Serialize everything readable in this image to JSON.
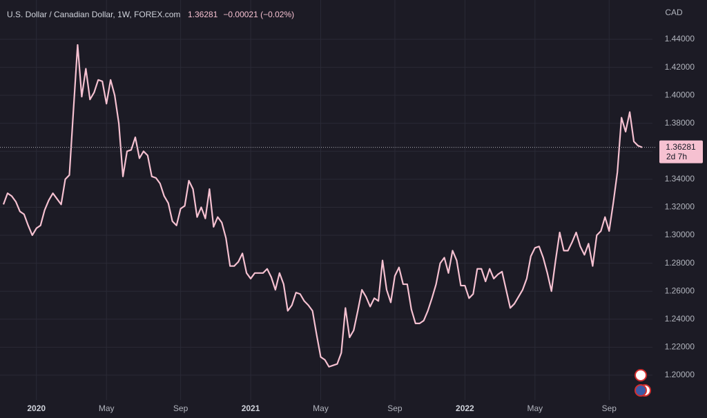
{
  "chart_data": {
    "type": "line",
    "title": "U.S. Dollar / Canadian Dollar, 1W, FOREX.com",
    "change": "−0.00021 (−0.02%)",
    "y_axis_label": "CAD",
    "last_price": 1.36281,
    "countdown": "2d 7h",
    "categories": [
      null,
      null,
      null,
      null,
      null,
      null,
      null,
      null,
      "2020",
      null,
      null,
      null,
      null,
      null,
      null,
      null,
      null,
      null,
      null,
      null,
      null,
      null,
      null,
      null,
      null,
      "May",
      null,
      null,
      null,
      null,
      null,
      null,
      null,
      null,
      null,
      null,
      null,
      null,
      null,
      null,
      null,
      null,
      null,
      "Sep",
      null,
      null,
      null,
      null,
      null,
      null,
      null,
      null,
      null,
      null,
      null,
      null,
      null,
      null,
      null,
      null,
      "2021",
      null,
      null,
      null,
      null,
      null,
      null,
      null,
      null,
      null,
      null,
      null,
      null,
      null,
      null,
      null,
      null,
      "May",
      null,
      null,
      null,
      null,
      null,
      null,
      null,
      null,
      null,
      null,
      null,
      null,
      null,
      null,
      null,
      null,
      null,
      "Sep",
      null,
      null,
      null,
      null,
      null,
      null,
      null,
      null,
      null,
      null,
      null,
      null,
      null,
      null,
      null,
      null,
      "2022",
      null,
      null,
      null,
      null,
      null,
      null,
      null,
      null,
      null,
      null,
      null,
      null,
      null,
      null,
      null,
      null,
      "May",
      null,
      null,
      null,
      null,
      null,
      null,
      null,
      null,
      null,
      null,
      null,
      null,
      null,
      null,
      null,
      null,
      null,
      "Sep",
      null,
      null,
      null,
      null,
      null,
      null,
      null,
      null
    ],
    "series": [
      {
        "name": "USD/CAD",
        "color": "#f6c1d1",
        "values": [
          1.322,
          1.33,
          1.328,
          1.324,
          1.317,
          1.315,
          1.307,
          1.3,
          1.305,
          1.307,
          1.318,
          1.325,
          1.33,
          1.326,
          1.322,
          1.34,
          1.343,
          1.39,
          1.436,
          1.399,
          1.419,
          1.397,
          1.402,
          1.411,
          1.41,
          1.394,
          1.411,
          1.4,
          1.38,
          1.342,
          1.36,
          1.361,
          1.37,
          1.355,
          1.36,
          1.357,
          1.342,
          1.341,
          1.337,
          1.328,
          1.323,
          1.31,
          1.307,
          1.319,
          1.321,
          1.339,
          1.333,
          1.313,
          1.32,
          1.312,
          1.333,
          1.306,
          1.313,
          1.309,
          1.298,
          1.278,
          1.278,
          1.281,
          1.287,
          1.273,
          1.269,
          1.273,
          1.273,
          1.273,
          1.276,
          1.27,
          1.261,
          1.273,
          1.265,
          1.246,
          1.25,
          1.259,
          1.258,
          1.253,
          1.25,
          1.246,
          1.229,
          1.213,
          1.211,
          1.206,
          1.207,
          1.208,
          1.216,
          1.248,
          1.227,
          1.232,
          1.246,
          1.261,
          1.256,
          1.249,
          1.255,
          1.253,
          1.282,
          1.261,
          1.252,
          1.271,
          1.277,
          1.265,
          1.265,
          1.247,
          1.237,
          1.237,
          1.239,
          1.246,
          1.255,
          1.265,
          1.28,
          1.284,
          1.273,
          1.289,
          1.282,
          1.264,
          1.264,
          1.255,
          1.258,
          1.276,
          1.276,
          1.267,
          1.276,
          1.269,
          1.272,
          1.274,
          1.261,
          1.248,
          1.251,
          1.256,
          1.261,
          1.269,
          1.285,
          1.291,
          1.292,
          1.284,
          1.273,
          1.26,
          1.282,
          1.302,
          1.289,
          1.289,
          1.295,
          1.302,
          1.292,
          1.286,
          1.294,
          1.278,
          1.3,
          1.303,
          1.313,
          1.303,
          1.323,
          1.345,
          1.384,
          1.374,
          1.388,
          1.367,
          1.364,
          1.3628
        ]
      }
    ],
    "ylim": [
      1.1832,
      1.4681
    ],
    "yticks": [
      {
        "value": 1.2,
        "label": "1.20000"
      },
      {
        "value": 1.22,
        "label": "1.22000"
      },
      {
        "value": 1.24,
        "label": "1.24000"
      },
      {
        "value": 1.26,
        "label": "1.26000"
      },
      {
        "value": 1.28,
        "label": "1.28000"
      },
      {
        "value": 1.3,
        "label": "1.30000"
      },
      {
        "value": 1.32,
        "label": "1.32000"
      },
      {
        "value": 1.34,
        "label": "1.34000"
      },
      {
        "value": 1.36,
        "label": "1.36000"
      },
      {
        "value": 1.38,
        "label": "1.38000"
      },
      {
        "value": 1.4,
        "label": "1.40000"
      },
      {
        "value": 1.42,
        "label": "1.42000"
      },
      {
        "value": 1.44,
        "label": "1.44000"
      }
    ],
    "grid": true
  }
}
